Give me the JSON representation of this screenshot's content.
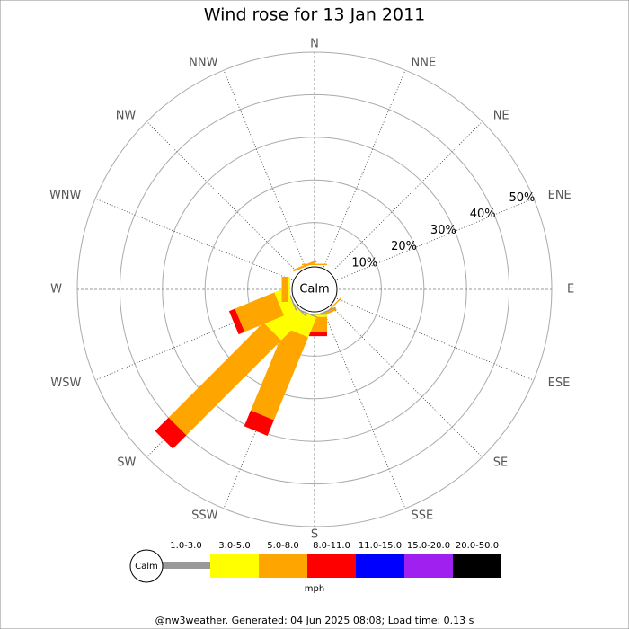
{
  "chart_data": {
    "type": "wind-rose",
    "title": "Wind rose for 13 Jan 2011",
    "directions": [
      "N",
      "NNE",
      "NE",
      "ENE",
      "E",
      "ESE",
      "SE",
      "SSE",
      "S",
      "SSW",
      "SW",
      "WSW",
      "W",
      "WNW",
      "NW",
      "NNW"
    ],
    "series": [
      {
        "name": "1.0-3.0",
        "color": "#999999",
        "values": [
          0,
          0,
          0,
          0,
          0,
          0,
          0,
          0.3,
          0.3,
          0.3,
          0.3,
          0.3,
          0,
          0,
          0,
          0
        ]
      },
      {
        "name": "3.0-5.0",
        "color": "#ffff00",
        "values": [
          0,
          0,
          0,
          0,
          0,
          0,
          0,
          0,
          0.5,
          5,
          8,
          3,
          0.5,
          0,
          0,
          0
        ]
      },
      {
        "name": "5.0-8.0",
        "color": "#ffa500",
        "values": [
          0.3,
          0,
          0,
          0,
          0,
          0,
          0.3,
          0.5,
          3.5,
          21,
          31.5,
          10,
          1.5,
          0,
          0,
          0.5
        ]
      },
      {
        "name": "8.0-11.0",
        "color": "#ff0000",
        "values": [
          0,
          0,
          0,
          0,
          0,
          0,
          0,
          0,
          1,
          4,
          4.5,
          1.5,
          0,
          0,
          0,
          0
        ]
      },
      {
        "name": "11.0-15.0",
        "color": "#0000ff",
        "values": [
          0,
          0,
          0,
          0,
          0,
          0,
          0,
          0,
          0,
          0,
          0,
          0,
          0,
          0,
          0,
          0
        ]
      },
      {
        "name": "15.0-20.0",
        "color": "#a020f0",
        "values": [
          0,
          0,
          0,
          0,
          0,
          0,
          0,
          0,
          0,
          0,
          0,
          0,
          0,
          0,
          0,
          0
        ]
      },
      {
        "name": "20.0-50.0",
        "color": "#000000",
        "values": [
          0,
          0,
          0,
          0,
          0,
          0,
          0,
          0,
          0,
          0,
          0,
          0,
          0,
          0,
          0,
          0
        ]
      }
    ],
    "rlim": [
      0,
      50
    ],
    "rticks": [
      {
        "value": 10,
        "label": "10%"
      },
      {
        "value": 20,
        "label": "20%"
      },
      {
        "value": 30,
        "label": "30%"
      },
      {
        "value": 40,
        "label": "40%"
      },
      {
        "value": 50,
        "label": "50%"
      }
    ],
    "center_label": "Calm",
    "unit_label": "mph",
    "footer": "@nw3weather. Generated: 04 Jun 2025 08:08; Load time: 0.13 s"
  }
}
